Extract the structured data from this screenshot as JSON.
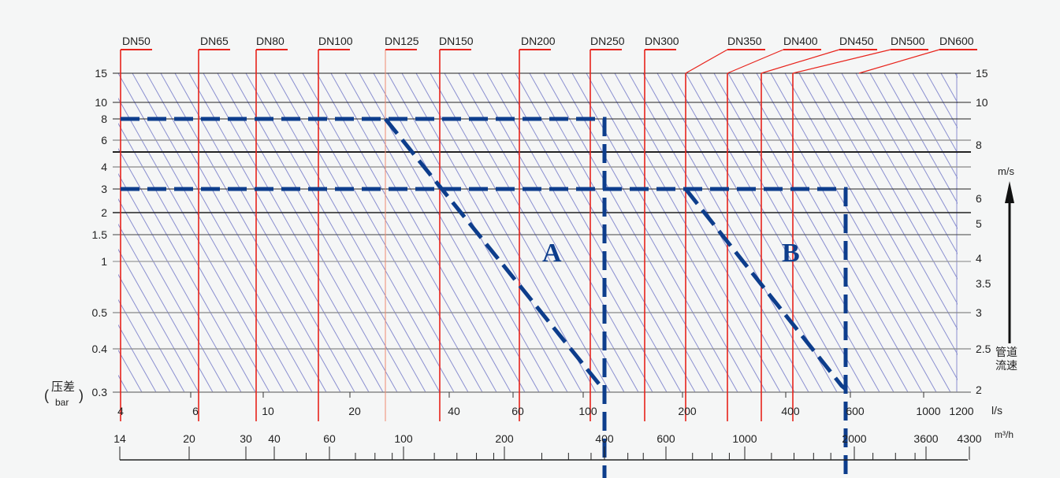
{
  "chart_data": {
    "type": "line",
    "title": "",
    "left_axis": {
      "label_top": "压差",
      "label_bottom": "bar",
      "ticks": [
        "15",
        "10",
        "8",
        "6",
        "4",
        "3",
        "2",
        "1.5",
        "1",
        "0.5",
        "0.4",
        "0.3"
      ]
    },
    "right_axis": {
      "unit": "m/s",
      "label": "管道流速",
      "ticks": [
        "15",
        "10",
        "8",
        "6",
        "5",
        "4",
        "3.5",
        "3",
        "2.5",
        "2"
      ]
    },
    "x_axis_ls": {
      "unit": "l/s",
      "ticks": [
        "4",
        "6",
        "10",
        "20",
        "40",
        "60",
        "100",
        "200",
        "400",
        "600",
        "1000",
        "1200"
      ]
    },
    "x_axis_m3h": {
      "unit": "m³/h",
      "ticks": [
        "14",
        "20",
        "30",
        "40",
        "60",
        "100",
        "200",
        "400",
        "600",
        "1000",
        "2000",
        "3600",
        "4300"
      ]
    },
    "dn_sizes": [
      "DN50",
      "DN65",
      "DN80",
      "DN100",
      "DN125",
      "DN150",
      "DN200",
      "DN250",
      "DN300",
      "DN350",
      "DN400",
      "DN450",
      "DN500",
      "DN600"
    ],
    "examples": [
      {
        "name": "A",
        "pressure_bar": 8,
        "size": "DN125",
        "flow_m3h": 400
      },
      {
        "name": "B",
        "pressure_bar": 3,
        "size": "DN350",
        "flow_m3h": 2000
      }
    ],
    "grid": true,
    "colors": {
      "dn_line": "#e8231b",
      "hatch": "#8a8fd0",
      "example_path": "#0d3d8c",
      "grid": "#222222"
    }
  }
}
